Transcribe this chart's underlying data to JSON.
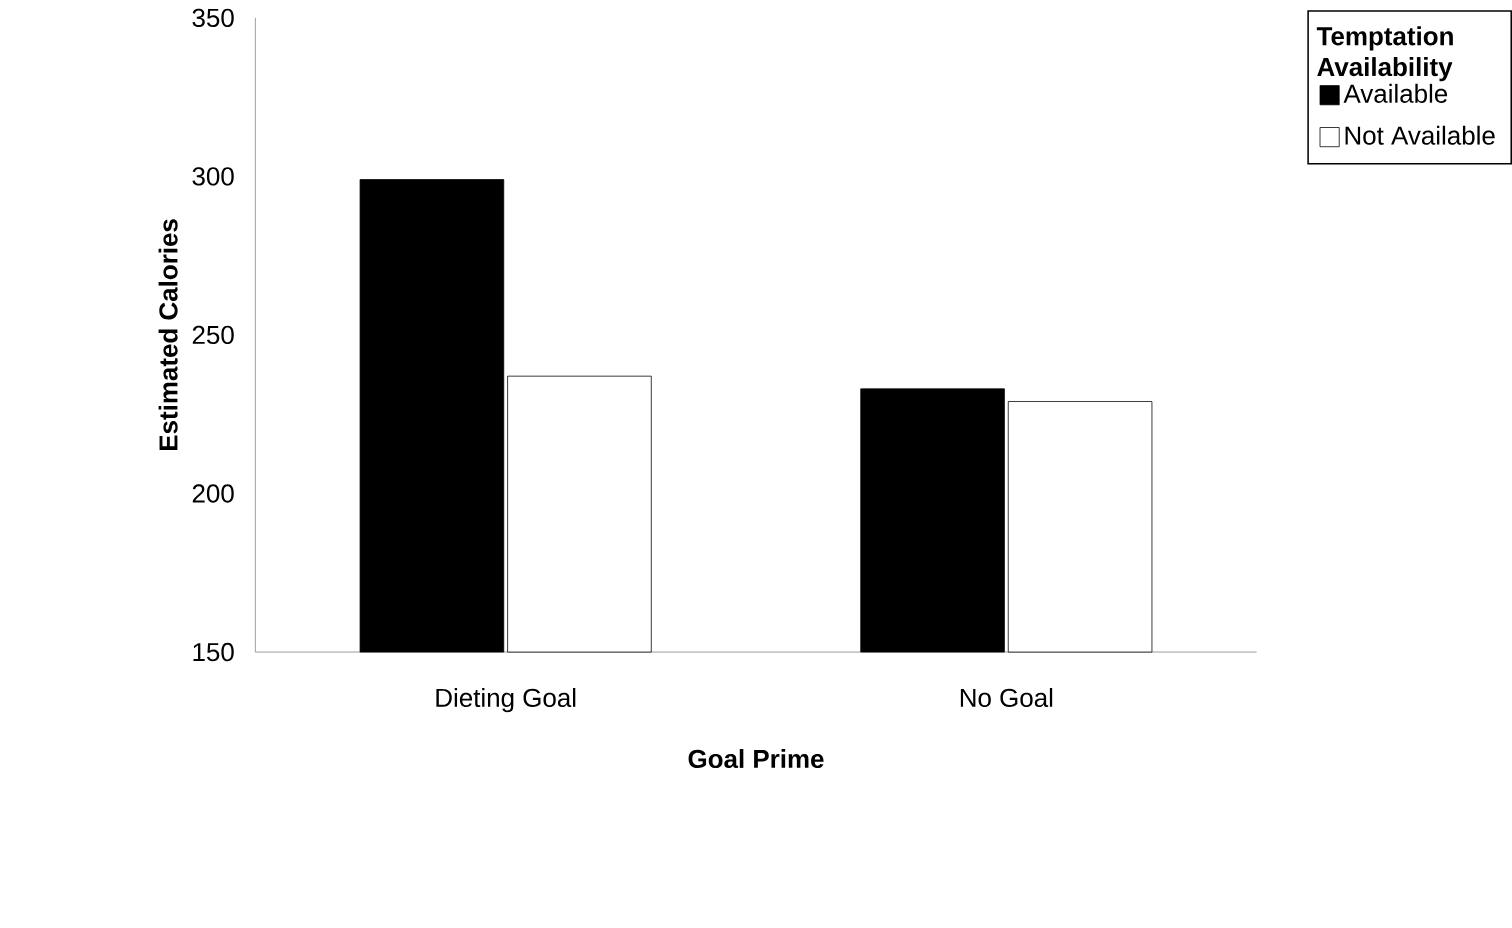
{
  "chart_data": {
    "type": "bar",
    "xlabel": "Goal Prime",
    "ylabel": "Estimated Calories",
    "legend_title": "Temptation Availability",
    "categories": [
      "Dieting Goal",
      "No Goal"
    ],
    "series": [
      {
        "name": "Available",
        "color": "#000000",
        "values": [
          299,
          233
        ]
      },
      {
        "name": "Not Available",
        "color": "#ffffff",
        "values": [
          237,
          229
        ]
      }
    ],
    "ylim": [
      150,
      350
    ],
    "yticks": [
      150,
      200,
      250,
      300,
      350
    ],
    "grid": false,
    "legend": "top right"
  }
}
